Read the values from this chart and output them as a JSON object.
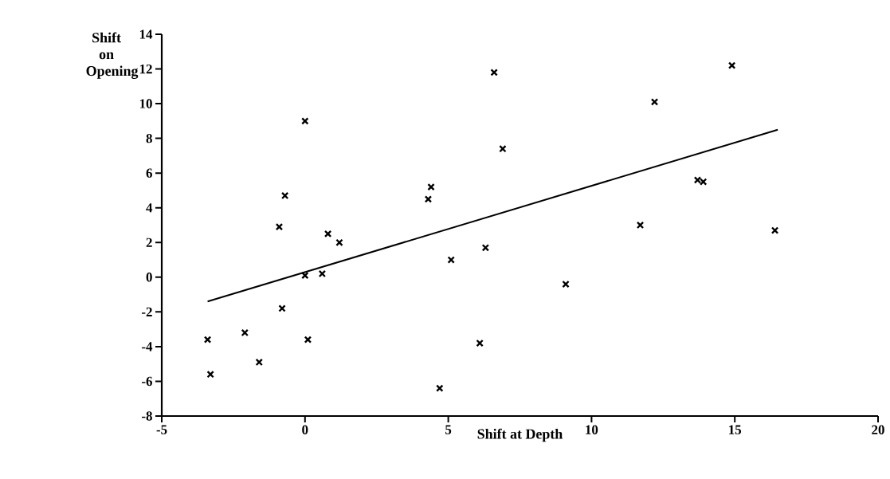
{
  "chart_data": {
    "type": "scatter",
    "xlabel": "Shift at Depth",
    "ylabel": "Shift on Opening",
    "xlim": [
      -5,
      20
    ],
    "ylim": [
      -8,
      14
    ],
    "xticks": [
      -5,
      0,
      5,
      10,
      15,
      20
    ],
    "yticks": [
      -8,
      -6,
      -4,
      -2,
      0,
      2,
      4,
      6,
      8,
      10,
      12,
      14
    ],
    "grid": false,
    "series": [
      {
        "marker": "cross",
        "color": "#000000",
        "x": [
          -3.4,
          -3.3,
          -2.1,
          -1.6,
          -0.8,
          -0.9,
          -0.7,
          0.0,
          0.0,
          0.1,
          0.6,
          0.8,
          1.2,
          4.3,
          4.4,
          4.7,
          5.1,
          6.1,
          6.3,
          6.6,
          6.9,
          9.1,
          11.7,
          12.2,
          13.7,
          13.9,
          14.9,
          16.4
        ],
        "values": [
          -3.6,
          -5.6,
          -3.2,
          -4.9,
          -1.8,
          2.9,
          4.7,
          9.0,
          0.1,
          -3.6,
          0.2,
          2.5,
          2.0,
          4.5,
          5.2,
          -6.4,
          1.0,
          -3.8,
          1.7,
          11.8,
          7.4,
          -0.4,
          3.0,
          10.1,
          5.6,
          5.5,
          12.2,
          2.7
        ]
      },
      {
        "type": "line",
        "marker": "none",
        "line_style": "solid",
        "color": "#000000",
        "x": [
          -3.4,
          16.5
        ],
        "values": [
          -1.4,
          8.5
        ]
      }
    ]
  }
}
